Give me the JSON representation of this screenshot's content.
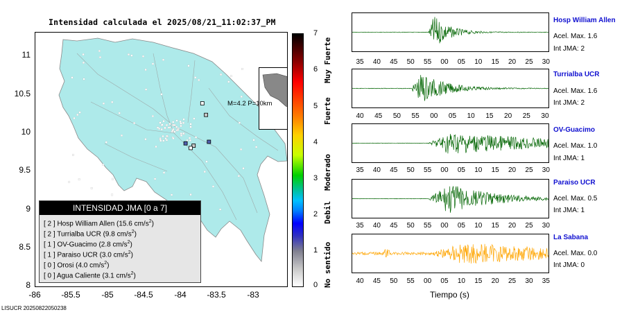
{
  "map": {
    "title": "Intensidad calculada el 2025/08/21_11:02:37_PM",
    "y_ticks": [
      "11",
      "10.5",
      "10",
      "9.5",
      "9",
      "8.5",
      "8"
    ],
    "x_ticks": [
      "-86",
      "-85.5",
      "-85",
      "-84.5",
      "-84",
      "-83.5",
      "-83"
    ],
    "inset_caption": "M=4.2 P=10km",
    "footer": "LISUCR 20250822050238",
    "land_color": "#aeeaea",
    "stations": [
      {
        "name": "Hosp William Allen",
        "intensity": 2,
        "lon": -83.97,
        "lat": 9.86,
        "color": "#5060b0"
      },
      {
        "name": "Turrialba UCR",
        "intensity": 2,
        "lon": -83.65,
        "lat": 9.88,
        "color": "#5060b0"
      },
      {
        "name": "OV-Guacimo",
        "intensity": 1,
        "lon": -83.69,
        "lat": 10.23,
        "color": "#c8c8c8"
      },
      {
        "name": "Paraiso UCR",
        "intensity": 1,
        "lon": -83.86,
        "lat": 9.83,
        "color": "#c8c8c8"
      },
      {
        "name": "Orosi",
        "intensity": 0,
        "lon": -83.74,
        "lat": 10.38,
        "color": "#ffffff"
      },
      {
        "name": "Agua Caliente",
        "intensity": 0,
        "lon": -83.9,
        "lat": 9.8,
        "color": "#ffffff"
      }
    ]
  },
  "legend": {
    "title": "INTENSIDAD JMA [0 a 7]",
    "rows": [
      {
        "label": "[ 2 ]  Hosp William Allen (15.6 cm/s",
        "sup": "2",
        "close": ")"
      },
      {
        "label": "[ 2 ]  Turrialba UCR (9.8 cm/s",
        "sup": "2",
        "close": ")"
      },
      {
        "label": "[ 1 ]  OV-Guacimo (2.8 cm/s",
        "sup": "2",
        "close": ")"
      },
      {
        "label": "[ 1 ]  Paraiso UCR (3.0 cm/s",
        "sup": "2",
        "close": ")"
      },
      {
        "label": "[ 0 ]  Orosi (4.0 cm/s",
        "sup": "2",
        "close": ")"
      },
      {
        "label": "[ 0 ]  Agua Caliente (3.1 cm/s",
        "sup": "2",
        "close": ")"
      }
    ]
  },
  "colorbar": {
    "numbers": [
      "7",
      "6",
      "5",
      "4",
      "3",
      "2",
      "1",
      "0"
    ],
    "words": [
      "Muy Fuerte",
      "Fuerte",
      "Moderado",
      "Debil",
      "No sentido"
    ]
  },
  "traces": {
    "time_label": "Tiempo (s)",
    "items": [
      {
        "station": "Hosp William Allen",
        "acel": "Acel. Max. 1.6",
        "jma": "Int JMA: 2",
        "color": "#006400",
        "ticks": [
          "35",
          "40",
          "45",
          "50",
          "55",
          "00",
          "05",
          "10",
          "15",
          "20",
          "25",
          "30"
        ]
      },
      {
        "station": "Turrialba UCR",
        "acel": "Acel. Max. 1.6",
        "jma": "Int JMA: 2",
        "color": "#006400",
        "ticks": [
          "40",
          "45",
          "50",
          "55",
          "00",
          "05",
          "10",
          "15",
          "20",
          "25",
          "30"
        ]
      },
      {
        "station": "OV-Guacimo",
        "acel": "Acel. Max. 1.0",
        "jma": "Int JMA: 1",
        "color": "#006400",
        "ticks": [
          "35",
          "40",
          "45",
          "50",
          "55",
          "00",
          "05",
          "10",
          "15",
          "20",
          "25",
          "30"
        ]
      },
      {
        "station": "Paraiso UCR",
        "acel": "Acel. Max. 0.5",
        "jma": "Int JMA: 1",
        "color": "#006400",
        "ticks": [
          "35",
          "40",
          "45",
          "50",
          "55",
          "00",
          "05",
          "10",
          "15",
          "20",
          "25",
          "30"
        ]
      },
      {
        "station": "La Sabana",
        "acel": "Acel. Max. 0.0",
        "jma": "Int JMA: 0",
        "color": "#ffa500",
        "ticks": [
          "40",
          "45",
          "50",
          "55",
          "00",
          "05",
          "10",
          "15",
          "20",
          "25",
          "30",
          "35"
        ]
      }
    ]
  }
}
